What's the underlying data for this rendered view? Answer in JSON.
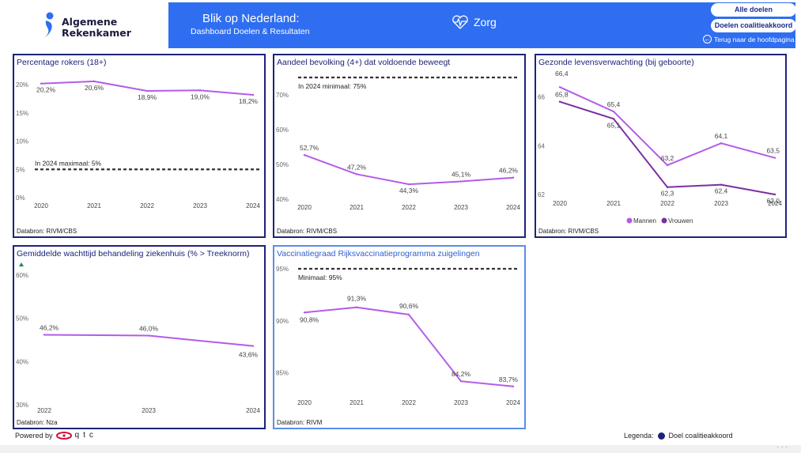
{
  "header": {
    "logo_line1": "Algemene",
    "logo_line2": "Rekenkamer",
    "title": "Blik op Nederland:",
    "subtitle": "Dashboard Doelen & Resultaten",
    "topic": "Zorg",
    "btn_all": "Alle doelen",
    "btn_coalition": "Doelen coalitieakkoord",
    "back": "Terug naar de hoofdpagina",
    "accent": "#2f6ef0"
  },
  "footer": {
    "powered": "Powered by",
    "brand": "qtc",
    "legend_label": "Legenda:",
    "legend_item": "Doel coalitieakkoord",
    "legend_color": "#1c237a"
  },
  "cards": [
    {
      "title": "Percentage rokers (18+)",
      "source": "Databron: RIVM/CBS"
    },
    {
      "title": "Aandeel bevolking (4+) dat voldoende beweegt",
      "source": "Databron: RIVM/CBS"
    },
    {
      "title": "Gezonde levensverwachting (bij geboorte)",
      "source": "Databron: RIVM/CBS"
    },
    {
      "title": "Gemiddelde wachttijd behandeling ziekenhuis (% > Treeknorm)",
      "source": "Databron: Nza"
    },
    {
      "title": "Vaccinatiegraad Rijksvaccinatieprogramma zuigelingen",
      "source": "Databron: RIVM"
    }
  ],
  "chart_data": [
    {
      "type": "line",
      "title": "Percentage rokers (18+)",
      "x": [
        "2020",
        "2021",
        "2022",
        "2023",
        "2024"
      ],
      "series": [
        {
          "values": [
            20.2,
            20.6,
            18.9,
            19.0,
            18.2
          ],
          "labels": [
            "20,2%",
            "20,6%",
            "18,9%",
            "19,0%",
            "18,2%"
          ],
          "color": "#b45be8"
        }
      ],
      "yticks": [
        "0%",
        "5%",
        "10%",
        "15%",
        "20%"
      ],
      "ylim": [
        0,
        21
      ],
      "target": {
        "value": 5,
        "label": "In 2024 maximaal: 5%"
      }
    },
    {
      "type": "line",
      "title": "Aandeel bevolking (4+) dat voldoende beweegt",
      "x": [
        "2020",
        "2021",
        "2022",
        "2023",
        "2024"
      ],
      "series": [
        {
          "values": [
            52.7,
            47.2,
            44.3,
            45.1,
            46.2
          ],
          "labels": [
            "52,7%",
            "47,2%",
            "44,3%",
            "45,1%",
            "46,2%"
          ],
          "color": "#b45be8"
        }
      ],
      "yticks": [
        "40%",
        "50%",
        "60%",
        "70%"
      ],
      "ylim": [
        40,
        75
      ],
      "target": {
        "value": 75,
        "label": "In 2024 minimaal: 75%"
      }
    },
    {
      "type": "line",
      "title": "Gezonde levensverwachting (bij geboorte)",
      "x": [
        "2020",
        "2021",
        "2022",
        "2023",
        "2024"
      ],
      "series": [
        {
          "name": "Mannen",
          "values": [
            66.4,
            65.4,
            63.2,
            64.1,
            63.5
          ],
          "labels": [
            "66,4",
            "65,4",
            "63,2",
            "64,1",
            "63,5"
          ],
          "color": "#b45be8"
        },
        {
          "name": "Vrouwen",
          "values": [
            65.8,
            65.1,
            62.3,
            62.4,
            62.0
          ],
          "labels": [
            "65,8",
            "65,1",
            "62,3",
            "62,4",
            "62,0"
          ],
          "color": "#7a2fa0"
        }
      ],
      "yticks": [
        "62",
        "64",
        "66"
      ],
      "ylim": [
        62,
        66.6
      ],
      "trend_labels": [
        "Mannen",
        "Vrouwen"
      ],
      "trend_color": "#d0103a",
      "legend": "bottom"
    },
    {
      "type": "line",
      "title": "Gemiddelde wachttijd behandeling ziekenhuis (% > Treeknorm)",
      "x": [
        "2022",
        "2023",
        "2024"
      ],
      "series": [
        {
          "values": [
            46.2,
            46.0,
            43.6
          ],
          "labels": [
            "46,2%",
            "46,0%",
            "43,6%"
          ],
          "color": "#b45be8"
        }
      ],
      "yticks": [
        "30%",
        "40%",
        "50%",
        "60%"
      ],
      "ylim": [
        30,
        60
      ],
      "trend_color": "#1a8a5a"
    },
    {
      "type": "line",
      "title": "Vaccinatiegraad Rijksvaccinatieprogramma zuigelingen",
      "x": [
        "2020",
        "2021",
        "2022",
        "2023",
        "2024"
      ],
      "series": [
        {
          "values": [
            90.8,
            91.3,
            90.6,
            84.2,
            83.7
          ],
          "labels": [
            "90,8%",
            "91,3%",
            "90,6%",
            "84,2%",
            "83,7%"
          ],
          "color": "#b45be8"
        }
      ],
      "yticks": [
        "85%",
        "90%",
        "95%"
      ],
      "ylim": [
        83,
        95
      ],
      "target": {
        "value": 95,
        "label": "Minimaal: 95%"
      }
    }
  ]
}
